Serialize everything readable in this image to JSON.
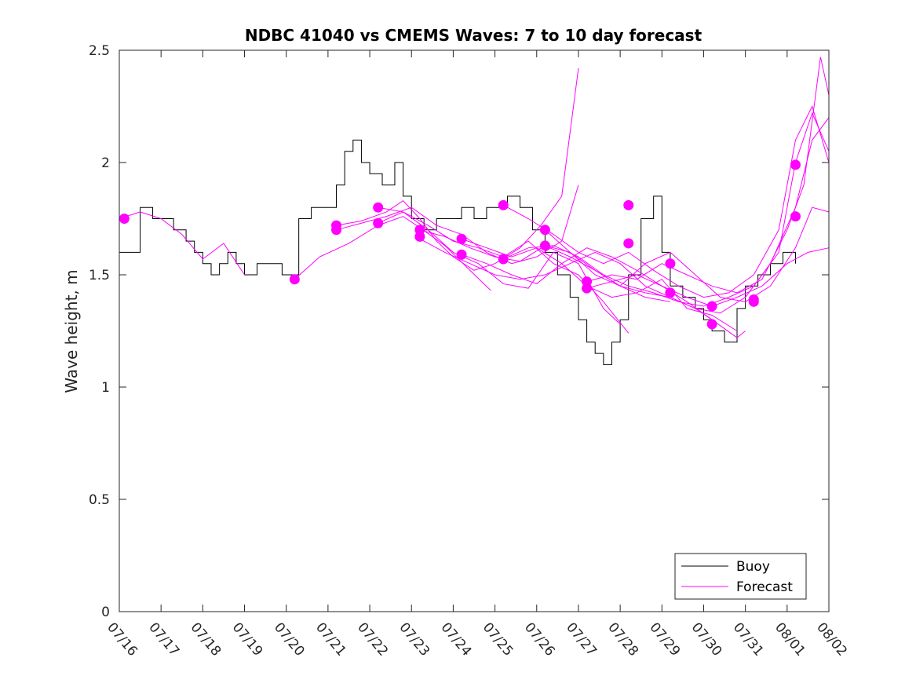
{
  "chart_data": {
    "type": "line",
    "title": "NDBC 41040 vs CMEMS Waves: 7 to 10 day forecast",
    "xlabel": "",
    "ylabel": "Wave height, m",
    "xlim": [
      "07/16",
      "08/02"
    ],
    "ylim": [
      0,
      2.5
    ],
    "yticks": [
      "0",
      "0.5",
      "1",
      "1.5",
      "2",
      "2.5"
    ],
    "xticks": [
      "07/16",
      "07/17",
      "07/18",
      "07/19",
      "07/20",
      "07/21",
      "07/22",
      "07/23",
      "07/24",
      "07/25",
      "07/26",
      "07/27",
      "07/28",
      "07/29",
      "07/30",
      "07/31",
      "08/01",
      "08/02"
    ],
    "grid": false,
    "legend": {
      "position": "bottom-right",
      "entries": [
        "Buoy",
        "Forecast"
      ]
    },
    "colors": {
      "buoy": "#000000",
      "forecast": "#ff00ff"
    },
    "series": [
      {
        "name": "Buoy",
        "x": [
          0,
          0.5,
          0.8,
          1.0,
          1.3,
          1.6,
          1.8,
          2.0,
          2.2,
          2.4,
          2.6,
          2.8,
          3.0,
          3.3,
          3.6,
          3.9,
          4.0,
          4.3,
          4.6,
          4.9,
          5.2,
          5.4,
          5.6,
          5.8,
          6.0,
          6.3,
          6.6,
          6.8,
          7.0,
          7.3,
          7.6,
          7.9,
          8.2,
          8.5,
          8.8,
          9.0,
          9.3,
          9.6,
          9.9,
          10.2,
          10.5,
          10.8,
          11.0,
          11.2,
          11.4,
          11.6,
          11.8,
          12.0,
          12.2,
          12.5,
          12.8,
          13.0,
          13.2,
          13.5,
          13.8,
          14.0,
          14.2,
          14.5,
          14.8,
          15.0,
          15.3,
          15.6,
          15.9,
          16.2
        ],
        "y": [
          1.6,
          1.8,
          1.75,
          1.75,
          1.7,
          1.65,
          1.6,
          1.55,
          1.5,
          1.55,
          1.6,
          1.55,
          1.5,
          1.55,
          1.55,
          1.5,
          1.5,
          1.75,
          1.8,
          1.8,
          1.9,
          2.05,
          2.1,
          2.0,
          1.95,
          1.9,
          2.0,
          1.85,
          1.75,
          1.7,
          1.75,
          1.75,
          1.8,
          1.75,
          1.8,
          1.8,
          1.85,
          1.8,
          1.7,
          1.6,
          1.5,
          1.4,
          1.3,
          1.2,
          1.15,
          1.1,
          1.2,
          1.3,
          1.5,
          1.75,
          1.85,
          1.6,
          1.45,
          1.4,
          1.35,
          1.3,
          1.25,
          1.2,
          1.35,
          1.45,
          1.5,
          1.55,
          1.6,
          1.55
        ]
      },
      {
        "name": "Forecast",
        "runs": [
          {
            "x": [
              0,
              0.5,
              1.0,
              1.5,
              2.0,
              2.5,
              3.0
            ],
            "y": [
              1.75,
              1.78,
              1.75,
              1.68,
              1.57,
              1.64,
              1.5
            ]
          },
          {
            "x": [
              4.2,
              4.8,
              5.5,
              6.2,
              6.8,
              7.2,
              7.8,
              8.4,
              8.9
            ],
            "y": [
              1.48,
              1.58,
              1.64,
              1.72,
              1.76,
              1.71,
              1.63,
              1.52,
              1.43
            ]
          },
          {
            "x": [
              5.2,
              5.8,
              6.4,
              6.8,
              7.2,
              7.6,
              8.0,
              8.5,
              9.0,
              9.6,
              10.1,
              10.6,
              11.0
            ],
            "y": [
              1.72,
              1.74,
              1.78,
              1.83,
              1.75,
              1.65,
              1.58,
              1.52,
              1.55,
              1.62,
              1.72,
              1.85,
              2.42
            ]
          },
          {
            "x": [
              5.2,
              5.8,
              6.4,
              7.0,
              7.6,
              8.2,
              8.8,
              9.4,
              10.0,
              10.6,
              11.0
            ],
            "y": [
              1.7,
              1.73,
              1.76,
              1.8,
              1.72,
              1.68,
              1.6,
              1.55,
              1.58,
              1.65,
              1.9
            ]
          },
          {
            "x": [
              6.2,
              6.8,
              7.4,
              8.0,
              8.6,
              9.2,
              9.8,
              10.4,
              11.0,
              11.6,
              12.0
            ],
            "y": [
              1.8,
              1.78,
              1.7,
              1.6,
              1.55,
              1.46,
              1.44,
              1.6,
              1.55,
              1.35,
              1.28
            ]
          },
          {
            "x": [
              6.2,
              6.8,
              7.4,
              8.0,
              8.6,
              9.2,
              9.8,
              10.4,
              11.0,
              11.6,
              12.2
            ],
            "y": [
              1.73,
              1.78,
              1.72,
              1.65,
              1.62,
              1.58,
              1.65,
              1.55,
              1.5,
              1.38,
              1.24
            ]
          },
          {
            "x": [
              7.2,
              7.8,
              8.4,
              9.0,
              9.6,
              10.2,
              10.8,
              11.4,
              12.0,
              12.6,
              13.2
            ],
            "y": [
              1.7,
              1.67,
              1.62,
              1.58,
              1.56,
              1.63,
              1.6,
              1.52,
              1.45,
              1.4,
              1.38
            ]
          },
          {
            "x": [
              7.2,
              7.8,
              8.4,
              9.0,
              9.6,
              10.2,
              10.8,
              11.4,
              12.0,
              12.6,
              13.2,
              13.8,
              14.2
            ],
            "y": [
              1.66,
              1.6,
              1.55,
              1.5,
              1.48,
              1.5,
              1.55,
              1.6,
              1.55,
              1.45,
              1.4,
              1.35,
              1.3
            ]
          },
          {
            "x": [
              8.2,
              8.8,
              9.4,
              10.0,
              10.6,
              11.2,
              11.8,
              12.4,
              13.0,
              13.6,
              14.2,
              14.8
            ],
            "y": [
              1.66,
              1.62,
              1.58,
              1.62,
              1.55,
              1.45,
              1.4,
              1.42,
              1.48,
              1.35,
              1.32,
              1.25
            ]
          },
          {
            "x": [
              8.2,
              8.8,
              9.4,
              10.0,
              10.6,
              11.2,
              11.8,
              12.4,
              13.0,
              13.6,
              14.2,
              14.8,
              15.0
            ],
            "y": [
              1.59,
              1.55,
              1.5,
              1.46,
              1.55,
              1.62,
              1.58,
              1.52,
              1.45,
              1.38,
              1.3,
              1.22,
              1.25
            ]
          },
          {
            "x": [
              9.2,
              9.8,
              10.4,
              11.0,
              11.6,
              12.2,
              12.8,
              13.4,
              14.0,
              14.6,
              15.2,
              15.8,
              16.2,
              16.6,
              17.0
            ],
            "y": [
              1.81,
              1.75,
              1.68,
              1.6,
              1.55,
              1.6,
              1.52,
              1.45,
              1.4,
              1.42,
              1.5,
              1.7,
              2.1,
              2.25,
              2.0
            ]
          },
          {
            "x": [
              9.2,
              9.8,
              10.4,
              11.0,
              11.6,
              12.2,
              12.8,
              13.4,
              14.0,
              14.6,
              15.2,
              15.8,
              16.2,
              16.6,
              17.0
            ],
            "y": [
              1.57,
              1.62,
              1.63,
              1.58,
              1.5,
              1.45,
              1.42,
              1.38,
              1.36,
              1.4,
              1.45,
              1.6,
              2.0,
              2.22,
              2.05
            ]
          },
          {
            "x": [
              10.2,
              10.8,
              11.4,
              12.0,
              12.6,
              13.2,
              13.8,
              14.4,
              15.0,
              15.6,
              16.2,
              16.6,
              17.0
            ],
            "y": [
              1.7,
              1.6,
              1.5,
              1.45,
              1.42,
              1.4,
              1.35,
              1.33,
              1.4,
              1.55,
              1.8,
              2.1,
              2.2
            ]
          },
          {
            "x": [
              10.2,
              10.8,
              11.4,
              12.0,
              12.6,
              13.2,
              13.8,
              14.4,
              15.0,
              15.6,
              16.2,
              16.6,
              17.0
            ],
            "y": [
              1.63,
              1.58,
              1.52,
              1.45,
              1.55,
              1.6,
              1.5,
              1.4,
              1.38,
              1.45,
              1.62,
              1.8,
              1.78
            ]
          },
          {
            "x": [
              11.2,
              11.8,
              12.4,
              13.0,
              13.6,
              14.2,
              14.8,
              15.4,
              16.0,
              16.4,
              16.8,
              17.0
            ],
            "y": [
              1.47,
              1.5,
              1.48,
              1.55,
              1.5,
              1.45,
              1.42,
              1.48,
              1.7,
              1.9,
              2.47,
              2.3
            ]
          },
          {
            "x": [
              11.2,
              11.8,
              12.4,
              13.0,
              13.6,
              14.2,
              14.8,
              15.4,
              16.0,
              16.5,
              17.0
            ],
            "y": [
              1.44,
              1.47,
              1.5,
              1.45,
              1.4,
              1.36,
              1.4,
              1.45,
              1.55,
              1.6,
              1.62
            ]
          }
        ],
        "markers": [
          [
            0.12,
            1.75
          ],
          [
            4.2,
            1.48
          ],
          [
            5.2,
            1.72
          ],
          [
            5.2,
            1.7
          ],
          [
            6.2,
            1.8
          ],
          [
            6.2,
            1.73
          ],
          [
            7.2,
            1.7
          ],
          [
            7.2,
            1.67
          ],
          [
            8.2,
            1.66
          ],
          [
            8.2,
            1.59
          ],
          [
            9.2,
            1.81
          ],
          [
            9.2,
            1.57
          ],
          [
            10.2,
            1.7
          ],
          [
            10.2,
            1.63
          ],
          [
            11.2,
            1.47
          ],
          [
            11.2,
            1.44
          ],
          [
            12.2,
            1.81
          ],
          [
            12.2,
            1.64
          ],
          [
            13.2,
            1.55
          ],
          [
            13.2,
            1.42
          ],
          [
            14.2,
            1.36
          ],
          [
            14.2,
            1.28
          ],
          [
            15.2,
            1.39
          ],
          [
            15.2,
            1.38
          ],
          [
            16.2,
            1.99
          ],
          [
            16.2,
            1.76
          ]
        ]
      }
    ]
  }
}
